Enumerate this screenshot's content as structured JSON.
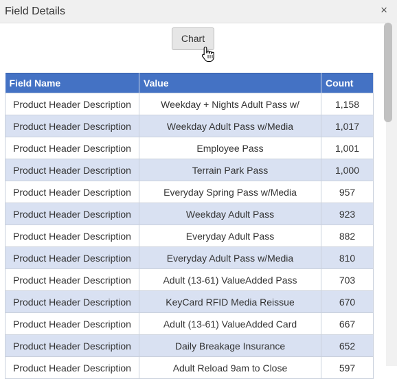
{
  "dialog": {
    "title": "Field Details",
    "close_symbol": "×",
    "chart_button_label": "Chart"
  },
  "table": {
    "headers": {
      "field_name": "Field Name",
      "value": "Value",
      "count": "Count"
    },
    "rows": [
      {
        "field": "Product Header Description",
        "value": "Weekday + Nights Adult Pass w/",
        "count": "1,158"
      },
      {
        "field": "Product Header Description",
        "value": "Weekday Adult Pass w/Media",
        "count": "1,017"
      },
      {
        "field": "Product Header Description",
        "value": "Employee Pass",
        "count": "1,001"
      },
      {
        "field": "Product Header Description",
        "value": "Terrain Park Pass",
        "count": "1,000"
      },
      {
        "field": "Product Header Description",
        "value": "Everyday Spring Pass w/Media",
        "count": "957"
      },
      {
        "field": "Product Header Description",
        "value": "Weekday Adult Pass",
        "count": "923"
      },
      {
        "field": "Product Header Description",
        "value": "Everyday Adult Pass",
        "count": "882"
      },
      {
        "field": "Product Header Description",
        "value": "Everyday Adult Pass w/Media",
        "count": "810"
      },
      {
        "field": "Product Header Description",
        "value": "Adult (13-61) ValueAdded Pass",
        "count": "703"
      },
      {
        "field": "Product Header Description",
        "value": "KeyCard RFID Media Reissue",
        "count": "670"
      },
      {
        "field": "Product Header Description",
        "value": "Adult (13-61) ValueAdded Card",
        "count": "667"
      },
      {
        "field": "Product Header Description",
        "value": "Daily Breakage Insurance",
        "count": "652"
      },
      {
        "field": "Product Header Description",
        "value": "Adult Reload 9am to Close",
        "count": "597"
      }
    ]
  },
  "colors": {
    "header_bg": "#4472c4",
    "stripe_bg": "#d9e1f2",
    "titlebar_bg": "#f0f0f0"
  },
  "icons": {
    "close": "close-icon",
    "cursor": "hand-pointer-icon"
  }
}
